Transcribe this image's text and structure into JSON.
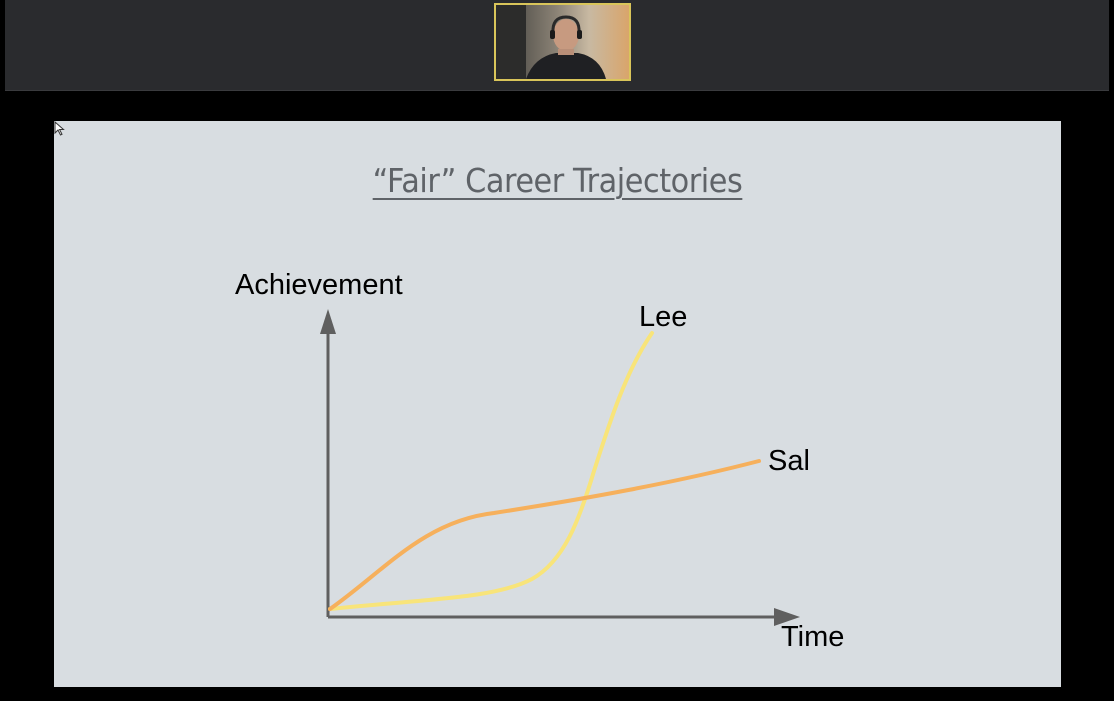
{
  "meeting": {
    "participant_tile": {
      "icon": "person-video-icon",
      "border_color": "#d9c55a"
    }
  },
  "slide": {
    "title": "“Fair” Career Trajectories",
    "y_axis_label": "Achievement",
    "x_axis_label": "Time",
    "series": [
      {
        "name": "Lee",
        "color": "#f8e47a",
        "shape": "slow start, steep late rise"
      },
      {
        "name": "Sal",
        "color": "#f6b05c",
        "shape": "fast early rise, steady linear growth"
      }
    ],
    "pointer_icon": "mouse-pointer-icon"
  }
}
